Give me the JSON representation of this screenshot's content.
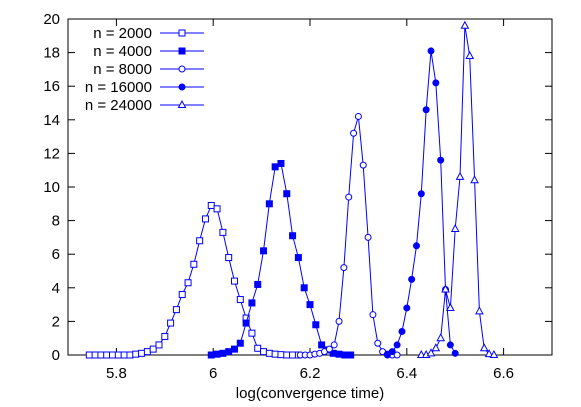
{
  "chart_data": {
    "type": "line",
    "title": "",
    "xlabel": "log(convergence time)",
    "ylabel": "",
    "xlim": [
      5.7,
      6.7
    ],
    "ylim": [
      0,
      20
    ],
    "x_ticks": [
      5.8,
      6.0,
      6.2,
      6.4,
      6.6
    ],
    "x_tick_labels": [
      "5.8",
      "6",
      "6.2",
      "6.4",
      "6.6"
    ],
    "y_ticks": [
      0,
      2,
      4,
      6,
      8,
      10,
      12,
      14,
      16,
      18,
      20
    ],
    "y_tick_labels": [
      "0",
      "2",
      "4",
      "6",
      "8",
      "10",
      "12",
      "14",
      "16",
      "18",
      "20"
    ],
    "grid": false,
    "legend_position": "top-left",
    "line_color": "#0000ff",
    "series": [
      {
        "name": "n = 2000",
        "marker": "square-open",
        "x": [
          5.744,
          5.756,
          5.768,
          5.78,
          5.792,
          5.804,
          5.816,
          5.828,
          5.84,
          5.852,
          5.864,
          5.876,
          5.888,
          5.9,
          5.912,
          5.924,
          5.936,
          5.948,
          5.96,
          5.972,
          5.984,
          5.996,
          6.008,
          6.02,
          6.032,
          6.044,
          6.056,
          6.068,
          6.08,
          6.092,
          6.104,
          6.116,
          6.128,
          6.14,
          6.152,
          6.164,
          6.176
        ],
        "y": [
          0,
          0,
          0,
          0,
          0,
          0,
          0,
          0,
          0.05,
          0.1,
          0.2,
          0.35,
          0.6,
          1.1,
          1.9,
          2.7,
          3.6,
          4.3,
          5.4,
          6.8,
          8.1,
          8.9,
          8.7,
          7.3,
          5.8,
          4.4,
          3.3,
          2.2,
          1.3,
          0.4,
          0.2,
          0.1,
          0.05,
          0.02,
          0,
          0,
          0
        ]
      },
      {
        "name": "n = 4000",
        "marker": "square-filled",
        "x": [
          5.996,
          6.008,
          6.02,
          6.032,
          6.044,
          6.056,
          6.068,
          6.08,
          6.092,
          6.104,
          6.116,
          6.128,
          6.14,
          6.152,
          6.164,
          6.176,
          6.188,
          6.2,
          6.212,
          6.224,
          6.236,
          6.248,
          6.26,
          6.272,
          6.284
        ],
        "y": [
          0,
          0.05,
          0.1,
          0.2,
          0.35,
          0.7,
          1.9,
          3.1,
          4.2,
          6.2,
          9.0,
          11.2,
          11.4,
          9.6,
          7.1,
          5.8,
          4.0,
          3.0,
          1.8,
          0.6,
          0.3,
          0.1,
          0.05,
          0,
          0
        ]
      },
      {
        "name": "n = 8000",
        "marker": "circle-open",
        "x": [
          6.18,
          6.19,
          6.2,
          6.21,
          6.22,
          6.23,
          6.24,
          6.25,
          6.26,
          6.27,
          6.28,
          6.29,
          6.3,
          6.31,
          6.32,
          6.33,
          6.34,
          6.35,
          6.36,
          6.37,
          6.38
        ],
        "y": [
          0,
          0,
          0,
          0.05,
          0.1,
          0.2,
          0.35,
          0.6,
          2.0,
          5.2,
          9.4,
          13.2,
          14.2,
          11.3,
          7.0,
          2.4,
          0.7,
          0.2,
          0.05,
          0,
          0
        ]
      },
      {
        "name": "n = 16000",
        "marker": "circle-filled",
        "x": [
          6.36,
          6.37,
          6.38,
          6.39,
          6.4,
          6.41,
          6.42,
          6.43,
          6.44,
          6.45,
          6.46,
          6.47,
          6.48,
          6.49,
          6.5
        ],
        "y": [
          0,
          0.2,
          0.6,
          1.4,
          2.8,
          4.5,
          6.5,
          9.6,
          14.6,
          18.1,
          16.2,
          11.6,
          3.9,
          0.6,
          0.1
        ]
      },
      {
        "name": "n = 24000",
        "marker": "triangle-open",
        "x": [
          6.43,
          6.44,
          6.45,
          6.46,
          6.47,
          6.48,
          6.49,
          6.5,
          6.51,
          6.52,
          6.53,
          6.54,
          6.55,
          6.56,
          6.57,
          6.58
        ],
        "y": [
          0,
          0,
          0.1,
          0.4,
          1.0,
          3.9,
          2.8,
          7.5,
          10.6,
          19.6,
          17.8,
          10.4,
          2.6,
          0.4,
          0.05,
          0
        ]
      }
    ]
  }
}
